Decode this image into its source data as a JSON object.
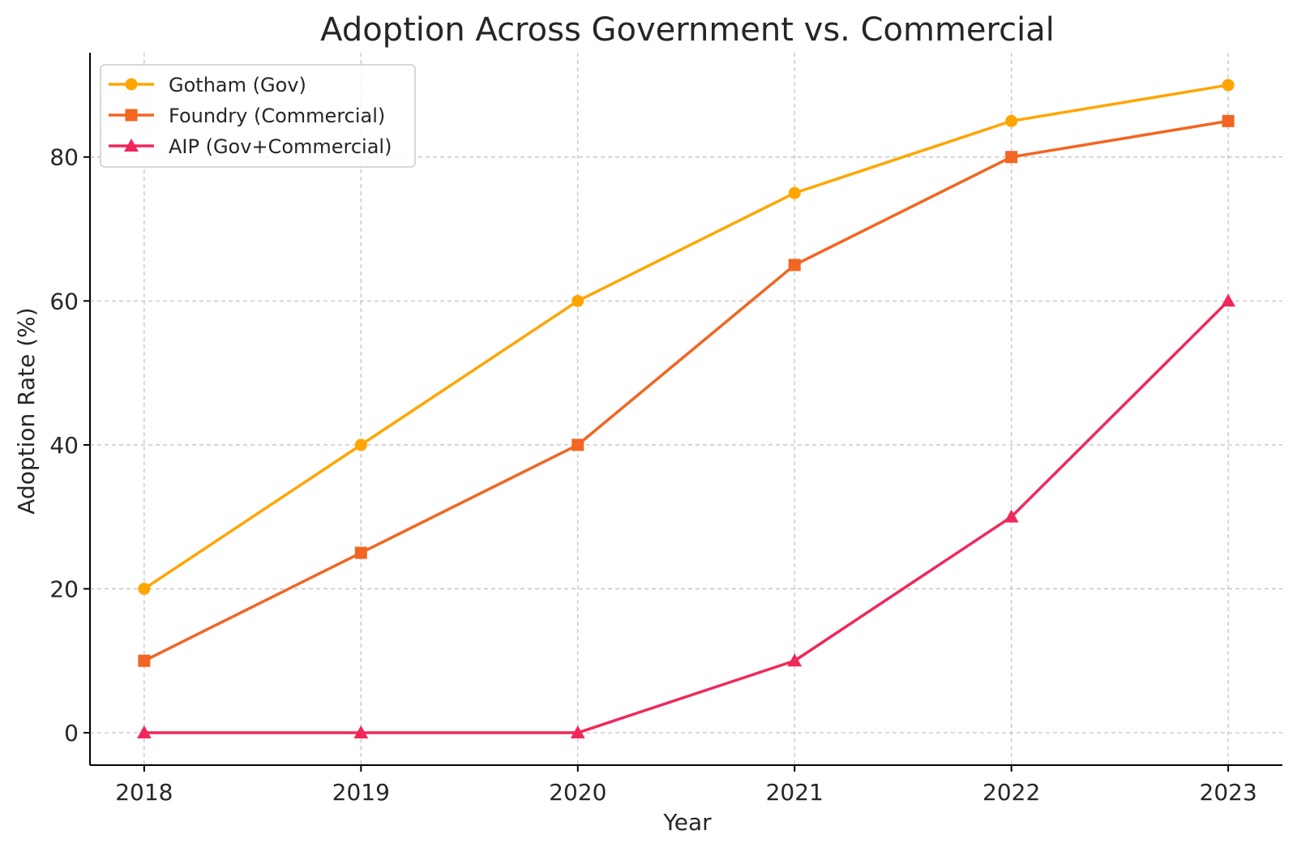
{
  "chart_data": {
    "type": "line",
    "title": "Adoption Across Government vs. Commercial",
    "xlabel": "Year",
    "ylabel": "Adoption Rate (%)",
    "categories": [
      "2018",
      "2019",
      "2020",
      "2021",
      "2022",
      "2023"
    ],
    "x": [
      2018,
      2019,
      2020,
      2021,
      2022,
      2023
    ],
    "xlim": [
      2017.75,
      2023.25
    ],
    "ylim": [
      -4.5,
      94.5
    ],
    "yticks": [
      0,
      20,
      40,
      60,
      80
    ],
    "grid": true,
    "legend_position": "top-left",
    "series": [
      {
        "name": "Gotham (Gov)",
        "values": [
          20,
          40,
          60,
          75,
          85,
          90
        ],
        "color": "#FFA500",
        "marker": "circle"
      },
      {
        "name": "Foundry (Commercial)",
        "values": [
          10,
          25,
          40,
          65,
          80,
          85
        ],
        "color": "#F26522",
        "marker": "square"
      },
      {
        "name": "AIP (Gov+Commercial)",
        "values": [
          0,
          0,
          0,
          10,
          30,
          60
        ],
        "color": "#F0285A",
        "marker": "triangle"
      }
    ]
  }
}
